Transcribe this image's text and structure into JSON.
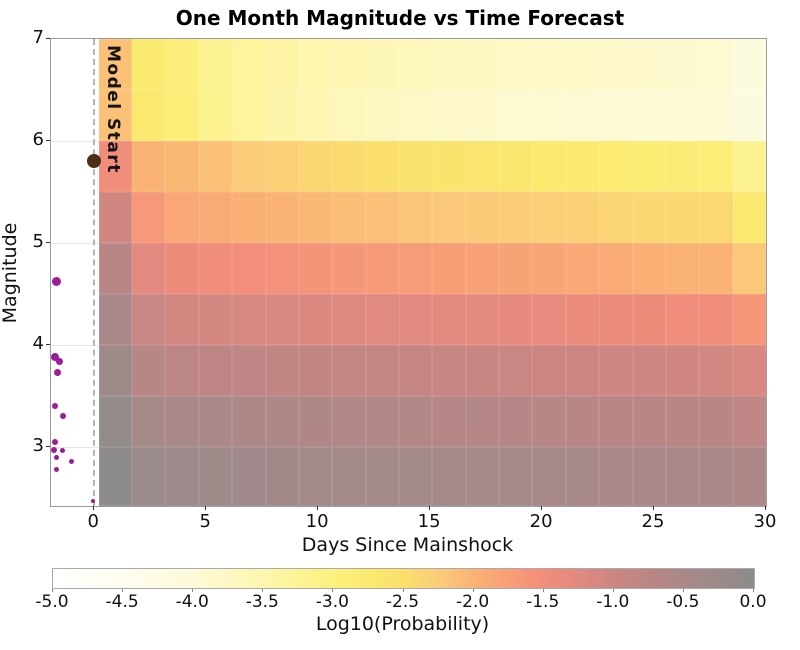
{
  "chart": {
    "title": "One Month Magnitude vs Time Forecast",
    "xlabel": "Days Since Mainshock",
    "ylabel": "Magnitude",
    "model_start_label": "Model Start",
    "colorbar": {
      "label": "Log10(Probability)",
      "tick_labels": [
        "-5.0",
        "-4.5",
        "-4.0",
        "-3.5",
        "-3.0",
        "-2.5",
        "-2.0",
        "-1.5",
        "-1.0",
        "-0.5",
        "0.0"
      ],
      "tick_values": [
        -5.0,
        -4.5,
        -4.0,
        -3.5,
        -3.0,
        -2.5,
        -2.0,
        -1.5,
        -1.0,
        -0.5,
        0.0
      ],
      "range": [
        -5.0,
        0.0
      ]
    }
  },
  "chart_data": {
    "type": "heatmap",
    "title": "One Month Magnitude vs Time Forecast",
    "xlabel": "Days Since Mainshock",
    "ylabel": "Magnitude",
    "value_label": "Log10(Probability)",
    "xlim": [
      -1.93,
      30
    ],
    "ylim": [
      2.42,
      7.0
    ],
    "x_ticks": [
      0,
      5,
      10,
      15,
      20,
      25,
      30
    ],
    "y_ticks": [
      3,
      4,
      5,
      6,
      7
    ],
    "gridlines_at_mag": [
      3,
      4,
      5,
      6
    ],
    "time_bin_edges_days": [
      0.2,
      1.69,
      3.18,
      4.67,
      6.16,
      7.65,
      9.14,
      10.63,
      12.12,
      13.61,
      15.1,
      16.59,
      18.08,
      19.57,
      21.06,
      22.55,
      24.04,
      25.53,
      27.02,
      28.51,
      30.0
    ],
    "mag_bin_edges": [
      7.0,
      6.5,
      6.0,
      5.5,
      5.0,
      4.5,
      4.0,
      3.5,
      3.0,
      2.42
    ],
    "log10_probability_grid_rows_top_to_bottom": [
      [
        -2.15,
        -2.75,
        -2.95,
        -3.2,
        -3.3,
        -3.4,
        -3.5,
        -3.55,
        -3.6,
        -3.65,
        -3.7,
        -3.72,
        -3.75,
        -3.78,
        -3.8,
        -3.83,
        -3.85,
        -3.88,
        -3.9,
        -4.1
      ],
      [
        -2.15,
        -2.7,
        -2.9,
        -3.15,
        -3.3,
        -3.45,
        -3.55,
        -3.65,
        -3.72,
        -3.78,
        -3.83,
        -3.87,
        -3.9,
        -3.92,
        -3.94,
        -3.96,
        -3.97,
        -3.98,
        -3.99,
        -4.15
      ],
      [
        -1.48,
        -2.0,
        -2.05,
        -2.15,
        -2.25,
        -2.32,
        -2.38,
        -2.44,
        -2.5,
        -2.55,
        -2.6,
        -2.64,
        -2.68,
        -2.72,
        -2.75,
        -2.78,
        -2.82,
        -2.85,
        -2.87,
        -3.2
      ],
      [
        -1.05,
        -1.65,
        -1.85,
        -1.9,
        -1.95,
        -2.0,
        -2.05,
        -2.1,
        -2.13,
        -2.17,
        -2.2,
        -2.23,
        -2.26,
        -2.29,
        -2.32,
        -2.35,
        -2.38,
        -2.4,
        -2.42,
        -2.7
      ],
      [
        -0.7,
        -1.28,
        -1.45,
        -1.48,
        -1.52,
        -1.56,
        -1.6,
        -1.64,
        -1.68,
        -1.71,
        -1.74,
        -1.77,
        -1.8,
        -1.83,
        -1.86,
        -1.89,
        -1.95,
        -1.98,
        -2.0,
        -2.2
      ],
      [
        -0.5,
        -0.95,
        -1.07,
        -1.1,
        -1.13,
        -1.16,
        -1.19,
        -1.22,
        -1.25,
        -1.27,
        -1.3,
        -1.32,
        -1.35,
        -1.37,
        -1.4,
        -1.42,
        -1.45,
        -1.47,
        -1.48,
        -1.62
      ],
      [
        -0.3,
        -0.68,
        -0.75,
        -0.78,
        -0.8,
        -0.82,
        -0.84,
        -0.86,
        -0.88,
        -0.9,
        -0.92,
        -0.94,
        -0.96,
        -0.98,
        -1.0,
        -1.01,
        -1.03,
        -1.05,
        -1.06,
        -1.15
      ],
      [
        -0.12,
        -0.42,
        -0.48,
        -0.52,
        -0.54,
        -0.56,
        -0.58,
        -0.6,
        -0.61,
        -0.63,
        -0.64,
        -0.66,
        -0.67,
        -0.68,
        -0.7,
        -0.71,
        -0.72,
        -0.73,
        -0.74,
        -0.8
      ],
      [
        -0.02,
        -0.22,
        -0.27,
        -0.3,
        -0.32,
        -0.34,
        -0.35,
        -0.37,
        -0.38,
        -0.4,
        -0.41,
        -0.42,
        -0.43,
        -0.44,
        -0.45,
        -0.46,
        -0.47,
        -0.48,
        -0.49,
        -0.53
      ]
    ],
    "colormap_stops": [
      {
        "v": -5.0,
        "c": "#ffffff"
      },
      {
        "v": -4.5,
        "c": "#fefdf0"
      },
      {
        "v": -4.0,
        "c": "#fdfad8"
      },
      {
        "v": -3.5,
        "c": "#fdf6af"
      },
      {
        "v": -3.0,
        "c": "#fcf07e"
      },
      {
        "v": -2.75,
        "c": "#fbea70"
      },
      {
        "v": -2.5,
        "c": "#fbdf6c"
      },
      {
        "v": -2.25,
        "c": "#fbcc79"
      },
      {
        "v": -2.0,
        "c": "#fab374"
      },
      {
        "v": -1.75,
        "c": "#f89f77"
      },
      {
        "v": -1.5,
        "c": "#f28d7b"
      },
      {
        "v": -1.25,
        "c": "#e08a80"
      },
      {
        "v": -1.0,
        "c": "#cc8682"
      },
      {
        "v": -0.75,
        "c": "#bb8684"
      },
      {
        "v": -0.5,
        "c": "#aa8889"
      },
      {
        "v": -0.25,
        "c": "#9c8a8a"
      },
      {
        "v": 0.0,
        "c": "#8c8b8b"
      }
    ],
    "model_start_day": 0,
    "mainshock": {
      "day": 0,
      "magnitude": 5.8,
      "color": "#4e2c15",
      "radius_px": 7
    },
    "observed_events": [
      {
        "day": -1.7,
        "magnitude": 4.62,
        "radius_px": 4.5
      },
      {
        "day": -1.75,
        "magnitude": 3.88,
        "radius_px": 4.0
      },
      {
        "day": -1.56,
        "magnitude": 3.84,
        "radius_px": 3.5
      },
      {
        "day": -1.62,
        "magnitude": 3.73,
        "radius_px": 3.5
      },
      {
        "day": -1.75,
        "magnitude": 3.4,
        "radius_px": 3.0
      },
      {
        "day": -1.4,
        "magnitude": 3.3,
        "radius_px": 3.0
      },
      {
        "day": -1.75,
        "magnitude": 3.05,
        "radius_px": 3.0
      },
      {
        "day": -1.78,
        "magnitude": 2.97,
        "radius_px": 3.0
      },
      {
        "day": -1.42,
        "magnitude": 2.96,
        "radius_px": 2.5
      },
      {
        "day": -1.7,
        "magnitude": 2.9,
        "radius_px": 2.5
      },
      {
        "day": -1.0,
        "magnitude": 2.86,
        "radius_px": 2.5
      },
      {
        "day": -1.7,
        "magnitude": 2.78,
        "radius_px": 2.5
      },
      {
        "day": -0.05,
        "magnitude": 2.47,
        "radius_px": 2.0
      }
    ],
    "event_color": "#9b1c9b",
    "legend": "none",
    "grid": true
  }
}
